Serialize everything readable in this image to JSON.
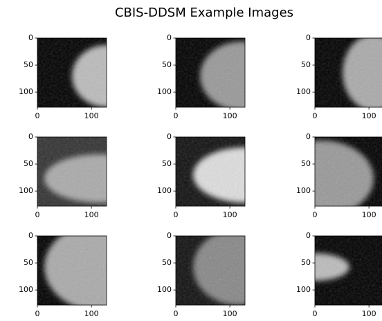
{
  "title": "CBIS-DDSM Example Images",
  "chart_data": [
    {
      "type": "image",
      "xlim": [
        0,
        128
      ],
      "ylim": [
        128,
        0
      ],
      "xticks": [
        0,
        100
      ],
      "yticks": [
        0,
        50,
        100
      ]
    },
    {
      "type": "image",
      "xlim": [
        0,
        128
      ],
      "ylim": [
        128,
        0
      ],
      "xticks": [
        0,
        100
      ],
      "yticks": [
        0,
        50,
        100
      ]
    },
    {
      "type": "image",
      "xlim": [
        0,
        128
      ],
      "ylim": [
        128,
        0
      ],
      "xticks": [
        0,
        100
      ],
      "yticks": [
        0,
        50,
        100
      ]
    },
    {
      "type": "image",
      "xlim": [
        0,
        128
      ],
      "ylim": [
        128,
        0
      ],
      "xticks": [
        0,
        100
      ],
      "yticks": [
        0,
        50,
        100
      ]
    },
    {
      "type": "image",
      "xlim": [
        0,
        128
      ],
      "ylim": [
        128,
        0
      ],
      "xticks": [
        0,
        100
      ],
      "yticks": [
        0,
        50,
        100
      ]
    },
    {
      "type": "image",
      "xlim": [
        0,
        128
      ],
      "ylim": [
        128,
        0
      ],
      "xticks": [
        0,
        100
      ],
      "yticks": [
        0,
        50,
        100
      ]
    },
    {
      "type": "image",
      "xlim": [
        0,
        128
      ],
      "ylim": [
        128,
        0
      ],
      "xticks": [
        0,
        100
      ],
      "yticks": [
        0,
        50,
        100
      ]
    },
    {
      "type": "image",
      "xlim": [
        0,
        128
      ],
      "ylim": [
        128,
        0
      ],
      "xticks": [
        0,
        100
      ],
      "yticks": [
        0,
        50,
        100
      ]
    },
    {
      "type": "image",
      "xlim": [
        0,
        128
      ],
      "ylim": [
        128,
        0
      ],
      "xticks": [
        0,
        100
      ],
      "yticks": [
        0,
        50,
        100
      ]
    }
  ]
}
